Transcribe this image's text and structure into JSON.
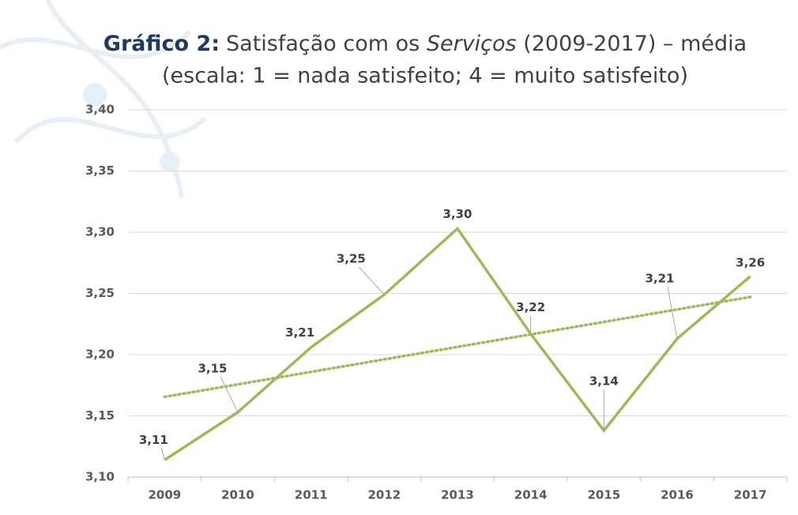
{
  "chart_data": {
    "type": "line",
    "title": {
      "label": "Gráfico 2:",
      "text": "Satisfação com os ",
      "italic": "Serviços",
      "rest": " (2009-2017) – média",
      "line2": "(escala: 1 = nada satisfeito; 4 = muito satisfeito)"
    },
    "categories": [
      "2009",
      "2010",
      "2011",
      "2012",
      "2013",
      "2014",
      "2015",
      "2016",
      "2017"
    ],
    "values": [
      3.114,
      3.153,
      3.206,
      3.249,
      3.303,
      3.217,
      3.138,
      3.213,
      3.264
    ],
    "value_labels": [
      "3,11",
      "3,15",
      "3,21",
      "3,25",
      "3,30",
      "3,22",
      "3,14",
      "3,21",
      "3,26"
    ],
    "color": "#9bbb59",
    "trendline": true,
    "ylim": [
      3.1,
      3.4
    ],
    "yticks": [
      {
        "value": 3.1,
        "label": "3,10"
      },
      {
        "value": 3.15,
        "label": "3,15"
      },
      {
        "value": 3.2,
        "label": "3,20"
      },
      {
        "value": 3.25,
        "label": "3,25"
      },
      {
        "value": 3.3,
        "label": "3,30"
      },
      {
        "value": 3.35,
        "label": "3,35"
      },
      {
        "value": 3.4,
        "label": "3,40"
      }
    ],
    "grid": true
  }
}
